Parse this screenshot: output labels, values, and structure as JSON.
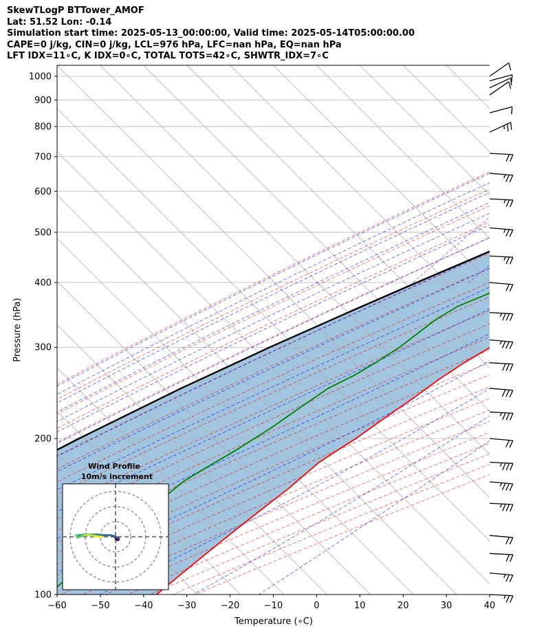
{
  "header": {
    "line1": "SkewTLogP BTTower_AMOF",
    "line2": "Lat: 51.52   Lon: -0.14",
    "line3": "Simulation start time: 2025-05-13_00:00:00, Valid time: 2025-05-14T05:00:00.00",
    "line4": "CAPE=0 j/kg, CIN=0 j/kg, LCL=976 hPa, LFC=nan hPa, EQ=nan hPa",
    "line5": "LFT IDX=11∘C, K IDX=0∘C, TOTAL TOTS=42∘C, SHWTR_IDX=7∘C"
  },
  "chart_data": [
    {
      "type": "line",
      "subtype": "skew-t log-p",
      "xlabel": "Temperature (∘C)",
      "ylabel": "Pressure (hPa)",
      "xlim": [
        -60,
        40
      ],
      "ylim": [
        1050,
        100
      ],
      "y_scale": "log",
      "grid": true,
      "x_ticks": [
        -60,
        -50,
        -40,
        -30,
        -20,
        -10,
        0,
        10,
        20,
        30,
        40
      ],
      "x_tick_labels": [
        "−60",
        "−50",
        "−40",
        "−30",
        "−20",
        "−10",
        "0",
        "10",
        "20",
        "30",
        "40"
      ],
      "y_ticks": [
        1000,
        900,
        800,
        700,
        600,
        500,
        400,
        300,
        200,
        100
      ],
      "y_tick_labels": [
        "1000",
        "900",
        "800",
        "700",
        "600",
        "500",
        "400",
        "300",
        "200",
        "100"
      ],
      "series": [
        {
          "role": "temperature",
          "color": "#ff0000",
          "points": [
            [
              1000,
              10
            ],
            [
              990,
              12.5
            ],
            [
              975,
              16.5
            ],
            [
              950,
              14.5
            ],
            [
              925,
              13
            ],
            [
              900,
              12
            ],
            [
              850,
              10.5
            ],
            [
              800,
              9.5
            ],
            [
              750,
              8.5
            ],
            [
              700,
              7.5
            ],
            [
              650,
              5.5
            ],
            [
              600,
              3.5
            ],
            [
              550,
              1
            ],
            [
              500,
              -2
            ],
            [
              450,
              -6
            ],
            [
              400,
              -9.5
            ],
            [
              380,
              -10
            ],
            [
              350,
              -12.5
            ],
            [
              320,
              -15
            ],
            [
              300,
              -17
            ],
            [
              280,
              -19.5
            ],
            [
              260,
              -21.5
            ],
            [
              240,
              -23
            ],
            [
              220,
              -25
            ],
            [
              200,
              -27
            ],
            [
              190,
              -28.5
            ],
            [
              180,
              -30
            ],
            [
              170,
              -30.5
            ],
            [
              160,
              -31
            ],
            [
              150,
              -32
            ],
            [
              140,
              -33
            ],
            [
              130,
              -34
            ],
            [
              120,
              -35
            ],
            [
              110,
              -36
            ],
            [
              100,
              -37
            ]
          ]
        },
        {
          "role": "dewpoint",
          "color": "#008000",
          "points": [
            [
              1000,
              7
            ],
            [
              975,
              7
            ],
            [
              950,
              5.5
            ],
            [
              925,
              4.5
            ],
            [
              900,
              3
            ],
            [
              875,
              1
            ],
            [
              850,
              -2
            ],
            [
              820,
              -7
            ],
            [
              800,
              -15
            ],
            [
              775,
              -18
            ],
            [
              750,
              -20.5
            ],
            [
              725,
              -20
            ],
            [
              700,
              -21
            ],
            [
              675,
              -22
            ],
            [
              650,
              -24
            ],
            [
              625,
              -26
            ],
            [
              600,
              -27
            ],
            [
              550,
              -29
            ],
            [
              500,
              -32
            ],
            [
              460,
              -35
            ],
            [
              440,
              -35
            ],
            [
              420,
              -31
            ],
            [
              400,
              -28
            ],
            [
              380,
              -30
            ],
            [
              360,
              -34
            ],
            [
              340,
              -36
            ],
            [
              320,
              -37
            ],
            [
              300,
              -38
            ],
            [
              280,
              -40
            ],
            [
              265,
              -42
            ],
            [
              250,
              -45
            ],
            [
              230,
              -47
            ],
            [
              210,
              -49
            ],
            [
              190,
              -52
            ],
            [
              175,
              -55
            ],
            [
              165,
              -57
            ],
            [
              150,
              -58
            ],
            [
              130,
              -60
            ],
            [
              115,
              -61
            ],
            [
              100,
              -62
            ]
          ]
        },
        {
          "role": "parcel",
          "color": "#000000",
          "points": [
            [
              1000,
              9
            ],
            [
              976,
              8.2
            ],
            [
              950,
              6.8
            ],
            [
              900,
              4
            ],
            [
              850,
              0.8
            ],
            [
              800,
              -2.6
            ],
            [
              750,
              -6.5
            ],
            [
              700,
              -10.8
            ],
            [
              650,
              -15.6
            ],
            [
              600,
              -21
            ],
            [
              550,
              -27
            ],
            [
              500,
              -33.5
            ],
            [
              450,
              -40.8
            ],
            [
              400,
              -49
            ],
            [
              350,
              -58
            ],
            [
              300,
              -68
            ],
            [
              250,
              -79
            ],
            [
              200,
              -91
            ],
            [
              150,
              -105
            ],
            [
              100,
              -122
            ]
          ]
        }
      ],
      "shading": {
        "between": [
          "temperature",
          "parcel"
        ],
        "color": "#a1c5de"
      },
      "wind_barbs": {
        "pressures": [
          100,
          110,
          120,
          130,
          150,
          165,
          180,
          200,
          225,
          250,
          280,
          310,
          350,
          400,
          450,
          510,
          580,
          650,
          710,
          780,
          850,
          920,
          950,
          980,
          1000
        ],
        "speeds_kt": [
          15,
          15,
          20,
          20,
          25,
          25,
          25,
          20,
          25,
          30,
          30,
          25,
          25,
          20,
          15,
          15,
          15,
          15,
          20,
          15,
          10,
          10,
          10,
          10,
          10
        ]
      }
    },
    {
      "type": "scatter",
      "subtype": "polar hodograph",
      "title": "Wind Profile",
      "subtitle": "10m/s increment",
      "rings_ms": [
        10,
        20,
        30
      ],
      "colormap": "viridis",
      "points": [
        [
          0,
          -1
        ],
        [
          0.5,
          -1.8
        ],
        [
          1.5,
          -2.2
        ],
        [
          2.2,
          -1.8
        ],
        [
          2,
          -1
        ],
        [
          1,
          -0.6
        ],
        [
          -1,
          0.3
        ],
        [
          -3,
          1
        ],
        [
          -6,
          1
        ],
        [
          -9,
          1
        ],
        [
          -12,
          1.5
        ],
        [
          -16,
          1.5
        ],
        [
          -20,
          1.5
        ],
        [
          -23,
          1.2
        ],
        [
          -25,
          1
        ],
        [
          -26,
          0.8
        ],
        [
          -25,
          -0.5
        ],
        [
          -21,
          1
        ],
        [
          -17,
          1.5
        ],
        [
          -14,
          0.5
        ],
        [
          -12,
          0.2
        ],
        [
          -9,
          0
        ]
      ]
    }
  ]
}
